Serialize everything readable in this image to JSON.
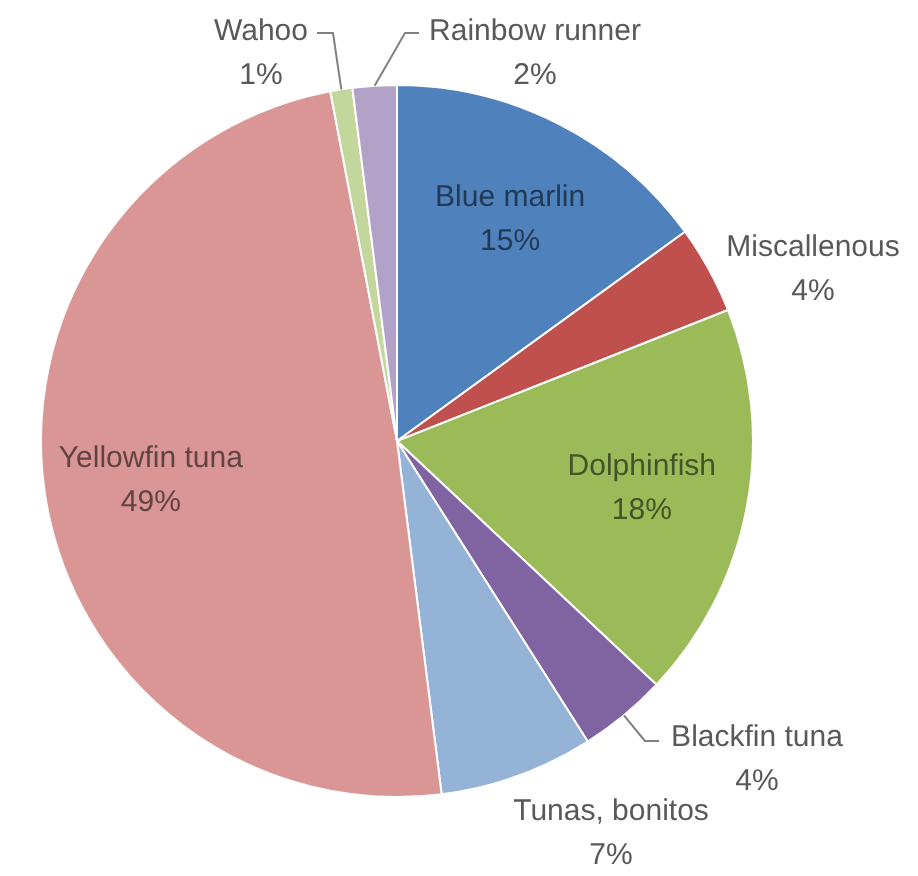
{
  "chart_data": {
    "type": "pie",
    "categories": [
      "Blue marlin",
      "Miscallenous",
      "Dolphinfish",
      "Blackfin tuna",
      "Tunas, bonitos",
      "Yellowfin tuna",
      "Wahoo",
      "Rainbow runner"
    ],
    "values": [
      15,
      4,
      18,
      4,
      7,
      49,
      1,
      2
    ],
    "colors": [
      "#4f81bd",
      "#c0504d",
      "#9bbb59",
      "#8064a2",
      "#95b3d7",
      "#d99694",
      "#c3d69b",
      "#b3a2c7"
    ],
    "value_labels": [
      "15%",
      "4%",
      "18%",
      "4%",
      "7%",
      "49%",
      "1%",
      "2%"
    ]
  }
}
